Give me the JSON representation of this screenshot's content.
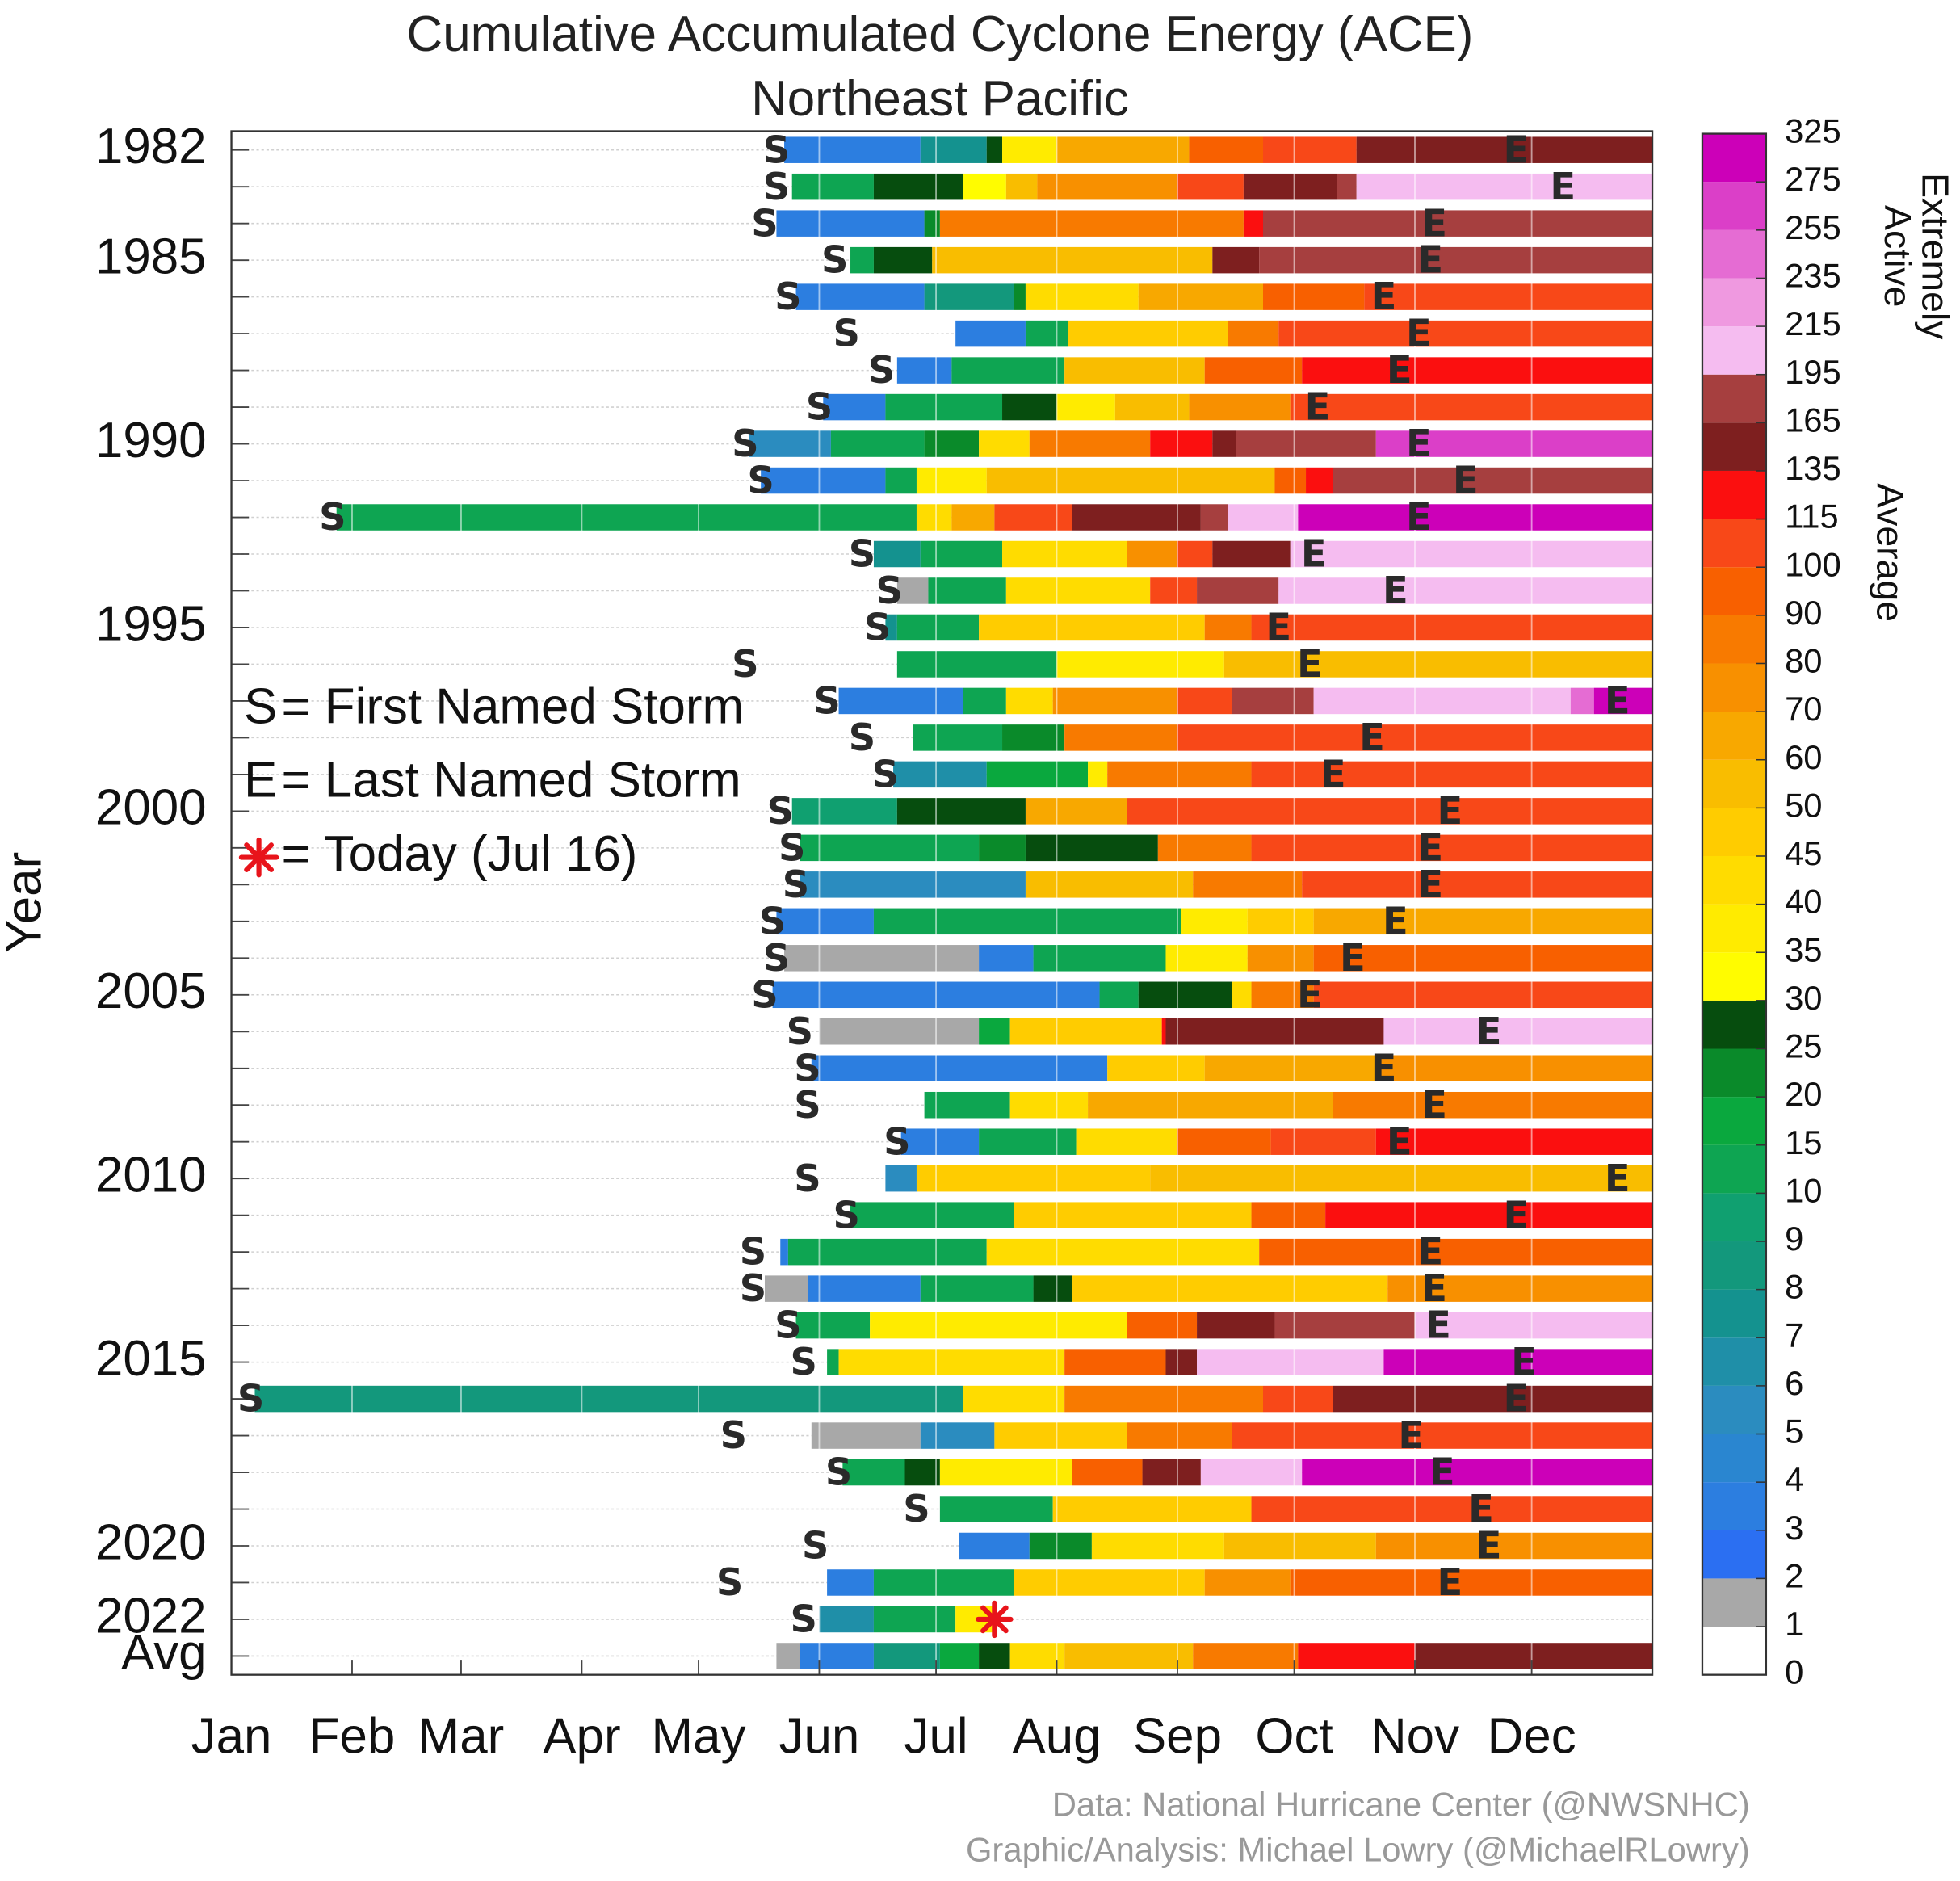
{
  "chart_data": {
    "type": "heatmap-timeline",
    "title": "Cumulative Accumulated Cyclone Energy (ACE)",
    "subtitle": "Northeast Pacific",
    "y_label": "Year",
    "xlim": [
      1,
      366
    ],
    "xticks": [
      {
        "value": 1,
        "label": "Jan"
      },
      {
        "value": 32,
        "label": "Feb"
      },
      {
        "value": 60,
        "label": "Mar"
      },
      {
        "value": 91,
        "label": "Apr"
      },
      {
        "value": 121,
        "label": "May"
      },
      {
        "value": 152,
        "label": "Jun"
      },
      {
        "value": 182,
        "label": "Jul"
      },
      {
        "value": 213,
        "label": "Aug"
      },
      {
        "value": 244,
        "label": "Sep"
      },
      {
        "value": 274,
        "label": "Oct"
      },
      {
        "value": 305,
        "label": "Nov"
      },
      {
        "value": 335,
        "label": "Dec"
      }
    ],
    "categories": [
      "1982",
      null,
      null,
      "1985",
      null,
      null,
      null,
      null,
      "1990",
      null,
      null,
      null,
      null,
      "1995",
      null,
      null,
      null,
      null,
      "2000",
      null,
      null,
      null,
      null,
      "2005",
      null,
      null,
      null,
      null,
      "2010",
      null,
      null,
      null,
      null,
      "2015",
      null,
      null,
      null,
      null,
      "2020",
      null,
      "2022",
      "Avg"
    ],
    "rows": [
      {
        "s": 141,
        "e": 331,
        "steps": [
          [
            143,
            3.5
          ],
          [
            178,
            7.5
          ],
          [
            195,
            25
          ],
          [
            199,
            35
          ],
          [
            213,
            60
          ],
          [
            247,
            90
          ],
          [
            266,
            110
          ],
          [
            290,
            150
          ]
        ]
      },
      {
        "s": 141,
        "e": 343,
        "steps": [
          [
            145,
            12
          ],
          [
            166,
            27
          ],
          [
            189,
            33
          ],
          [
            200,
            55
          ],
          [
            208,
            70
          ],
          [
            244,
            100
          ],
          [
            261,
            140
          ],
          [
            285,
            170
          ],
          [
            290,
            200
          ]
        ]
      },
      {
        "s": 138,
        "e": 310,
        "steps": [
          [
            141,
            3
          ],
          [
            179,
            22
          ],
          [
            183,
            80
          ],
          [
            261,
            115
          ],
          [
            266,
            170
          ]
        ]
      },
      {
        "s": 156,
        "e": 309,
        "steps": [
          [
            160,
            12
          ],
          [
            166,
            27
          ],
          [
            181,
            50
          ],
          [
            253,
            150
          ],
          [
            265,
            170
          ]
        ]
      },
      {
        "s": 144,
        "e": 297,
        "steps": [
          [
            146,
            3
          ],
          [
            179,
            8
          ],
          [
            202,
            22
          ],
          [
            205,
            40
          ],
          [
            234,
            60
          ],
          [
            266,
            90
          ],
          [
            292,
            110
          ]
        ]
      },
      {
        "s": 159,
        "e": 306,
        "steps": [
          [
            187,
            3.5
          ],
          [
            205,
            12
          ],
          [
            216,
            45
          ],
          [
            257,
            80
          ],
          [
            270,
            110
          ]
        ]
      },
      {
        "s": 168,
        "e": 301,
        "steps": [
          [
            172,
            3
          ],
          [
            186,
            12
          ],
          [
            215,
            50
          ],
          [
            251,
            90
          ],
          [
            276,
            115
          ]
        ]
      },
      {
        "s": 152,
        "e": 280,
        "steps": [
          [
            153,
            3
          ],
          [
            169,
            12
          ],
          [
            199,
            25
          ],
          [
            213,
            35
          ],
          [
            228,
            50
          ],
          [
            247,
            70
          ],
          [
            273,
            100
          ]
        ]
      },
      {
        "s": 133,
        "e": 306,
        "steps": [
          [
            134,
            5
          ],
          [
            155,
            12
          ],
          [
            179,
            22
          ],
          [
            193,
            40
          ],
          [
            206,
            80
          ],
          [
            237,
            115
          ],
          [
            253,
            150
          ],
          [
            259,
            170
          ],
          [
            295,
            260
          ]
        ]
      },
      {
        "s": 137,
        "e": 318,
        "steps": [
          [
            137,
            3
          ],
          [
            169,
            12
          ],
          [
            177,
            35
          ],
          [
            195,
            50
          ],
          [
            269,
            90
          ],
          [
            277,
            120
          ],
          [
            284,
            170
          ]
        ]
      },
      {
        "s": 27,
        "e": 306,
        "steps": [
          [
            28,
            12
          ],
          [
            177,
            40
          ],
          [
            186,
            60
          ],
          [
            197,
            100
          ],
          [
            217,
            150
          ],
          [
            250,
            170
          ],
          [
            257,
            200
          ],
          [
            275,
            290
          ]
        ]
      },
      {
        "s": 163,
        "e": 279,
        "steps": [
          [
            166,
            7.5
          ],
          [
            178,
            12
          ],
          [
            199,
            40
          ],
          [
            231,
            70
          ],
          [
            244,
            110
          ],
          [
            253,
            150
          ],
          [
            273,
            200
          ]
        ]
      },
      {
        "s": 170,
        "e": 300,
        "steps": [
          [
            172,
            1.5
          ],
          [
            180,
            12
          ],
          [
            200,
            40
          ],
          [
            237,
            110
          ],
          [
            249,
            170
          ],
          [
            270,
            200
          ]
        ]
      },
      {
        "s": 167,
        "e": 270,
        "steps": [
          [
            169,
            7.5
          ],
          [
            172,
            12
          ],
          [
            193,
            45
          ],
          [
            251,
            80
          ],
          [
            263,
            110
          ]
        ]
      },
      {
        "s": 133,
        "e": 278,
        "steps": [
          [
            172,
            12
          ],
          [
            213,
            35
          ],
          [
            256,
            50
          ]
        ]
      },
      {
        "s": 154,
        "e": 357,
        "steps": [
          [
            157,
            3
          ],
          [
            189,
            12
          ],
          [
            200,
            40
          ],
          [
            212,
            70
          ],
          [
            244,
            110
          ],
          [
            258,
            170
          ],
          [
            279,
            200
          ],
          [
            345,
            240
          ],
          [
            351,
            290
          ]
        ]
      },
      {
        "s": 163,
        "e": 294,
        "steps": [
          [
            176,
            12
          ],
          [
            199,
            22
          ],
          [
            215,
            80
          ],
          [
            244,
            110
          ]
        ]
      },
      {
        "s": 169,
        "e": 284,
        "steps": [
          [
            171,
            6
          ],
          [
            195,
            15
          ],
          [
            221,
            35
          ],
          [
            226,
            80
          ],
          [
            263,
            110
          ]
        ]
      },
      {
        "s": 142,
        "e": 314,
        "steps": [
          [
            145,
            9
          ],
          [
            172,
            27
          ],
          [
            205,
            60
          ],
          [
            231,
            100
          ]
        ]
      },
      {
        "s": 145,
        "e": 309,
        "steps": [
          [
            147,
            12
          ],
          [
            193,
            22
          ],
          [
            205,
            27
          ],
          [
            239,
            80
          ],
          [
            263,
            100
          ]
        ]
      },
      {
        "s": 146,
        "e": 309,
        "steps": [
          [
            147,
            5
          ],
          [
            205,
            50
          ],
          [
            248,
            80
          ],
          [
            276,
            100
          ]
        ]
      },
      {
        "s": 140,
        "e": 300,
        "steps": [
          [
            141,
            3
          ],
          [
            166,
            12
          ],
          [
            245,
            35
          ],
          [
            262,
            45
          ],
          [
            279,
            60
          ]
        ]
      },
      {
        "s": 141,
        "e": 289,
        "steps": [
          [
            143,
            1.5
          ],
          [
            193,
            3
          ],
          [
            207,
            12
          ],
          [
            241,
            35
          ],
          [
            262,
            70
          ],
          [
            279,
            90
          ]
        ]
      },
      {
        "s": 138,
        "e": 278,
        "steps": [
          [
            140,
            3
          ],
          [
            224,
            12
          ],
          [
            234,
            27
          ],
          [
            258,
            40
          ],
          [
            263,
            80
          ],
          [
            279,
            100
          ]
        ]
      },
      {
        "s": 147,
        "e": 324,
        "steps": [
          [
            152,
            1.5
          ],
          [
            193,
            15
          ],
          [
            201,
            45
          ],
          [
            240,
            115
          ],
          [
            241,
            150
          ],
          [
            297,
            200
          ]
        ]
      },
      {
        "s": 149,
        "e": 297,
        "steps": [
          [
            150,
            3
          ],
          [
            226,
            45
          ],
          [
            251,
            60
          ],
          [
            295,
            70
          ]
        ]
      },
      {
        "s": 149,
        "e": 310,
        "steps": [
          [
            179,
            12
          ],
          [
            201,
            40
          ],
          [
            221,
            60
          ],
          [
            284,
            80
          ]
        ]
      },
      {
        "s": 172,
        "e": 301,
        "steps": [
          [
            173,
            3
          ],
          [
            193,
            12
          ],
          [
            218,
            40
          ],
          [
            244,
            90
          ],
          [
            268,
            100
          ],
          [
            295,
            115
          ]
        ]
      },
      {
        "s": 149,
        "e": 357,
        "steps": [
          [
            169,
            5
          ],
          [
            177,
            45
          ],
          [
            237,
            50
          ]
        ]
      },
      {
        "s": 159,
        "e": 331,
        "steps": [
          [
            160,
            12
          ],
          [
            202,
            45
          ],
          [
            263,
            90
          ],
          [
            282,
            115
          ]
        ]
      },
      {
        "s": 135,
        "e": 309,
        "steps": [
          [
            142,
            3
          ],
          [
            144,
            12
          ],
          [
            195,
            40
          ],
          [
            265,
            90
          ]
        ]
      },
      {
        "s": 135,
        "e": 310,
        "steps": [
          [
            138,
            1.5
          ],
          [
            149,
            3
          ],
          [
            178,
            12
          ],
          [
            207,
            27
          ],
          [
            217,
            45
          ],
          [
            298,
            70
          ]
        ]
      },
      {
        "s": 144,
        "e": 311,
        "steps": [
          [
            146,
            12
          ],
          [
            165,
            35
          ],
          [
            231,
            90
          ],
          [
            249,
            150
          ],
          [
            269,
            165
          ],
          [
            305,
            200
          ]
        ]
      },
      {
        "s": 148,
        "e": 333,
        "steps": [
          [
            154,
            12
          ],
          [
            157,
            40
          ],
          [
            215,
            90
          ],
          [
            241,
            150
          ],
          [
            249,
            200
          ],
          [
            297,
            285
          ]
        ]
      },
      {
        "s": 6,
        "e": 331,
        "steps": [
          [
            7,
            8
          ],
          [
            189,
            40
          ],
          [
            215,
            80
          ],
          [
            266,
            110
          ],
          [
            284,
            150
          ]
        ]
      },
      {
        "s": 130,
        "e": 304,
        "steps": [
          [
            150,
            1.5
          ],
          [
            178,
            5
          ],
          [
            197,
            45
          ],
          [
            231,
            80
          ],
          [
            258,
            110
          ]
        ]
      },
      {
        "s": 157,
        "e": 312,
        "steps": [
          [
            158,
            12
          ],
          [
            174,
            27
          ],
          [
            183,
            35
          ],
          [
            217,
            90
          ],
          [
            235,
            150
          ],
          [
            250,
            200
          ],
          [
            276,
            290
          ]
        ]
      },
      {
        "s": 177,
        "e": 322,
        "steps": [
          [
            183,
            12
          ],
          [
            212,
            45
          ],
          [
            263,
            100
          ]
        ]
      },
      {
        "s": 151,
        "e": 324,
        "steps": [
          [
            188,
            3
          ],
          [
            206,
            22
          ],
          [
            222,
            40
          ],
          [
            256,
            50
          ],
          [
            295,
            70
          ]
        ]
      },
      {
        "s": 129,
        "e": 314,
        "steps": [
          [
            154,
            3
          ],
          [
            166,
            12
          ],
          [
            202,
            45
          ],
          [
            251,
            70
          ],
          [
            273,
            90
          ]
        ]
      },
      {
        "s": 148,
        "steps": [
          [
            152,
            6
          ],
          [
            166,
            12
          ],
          [
            187,
            35
          ]
        ]
      },
      {
        "steps": [
          [
            141,
            1.5
          ],
          [
            147,
            3
          ],
          [
            166,
            8
          ],
          [
            183,
            15
          ],
          [
            193,
            25
          ],
          [
            201,
            40
          ],
          [
            215,
            55
          ],
          [
            248,
            80
          ],
          [
            275,
            115
          ],
          [
            305,
            140
          ]
        ]
      }
    ],
    "today": 197,
    "colorbar": {
      "bounds": [
        0,
        1,
        2,
        3,
        4,
        5,
        6,
        7,
        8,
        9,
        10,
        15,
        20,
        25,
        30,
        35,
        40,
        45,
        50,
        60,
        70,
        80,
        90,
        100,
        115,
        135,
        165,
        195,
        215,
        235,
        255,
        275,
        325
      ],
      "colors": [
        "#ffffff",
        "#a8a8a8",
        "#2b6ff2",
        "#2c7ee0",
        "#2a86d0",
        "#2b8cbf",
        "#1f8fa8",
        "#14928f",
        "#13987c",
        "#10a070",
        "#0ea552",
        "#0aa83e",
        "#0a8a2a",
        "#064d0e",
        "#fffc00",
        "#ffeb00",
        "#ffdc00",
        "#ffcc00",
        "#f9bd00",
        "#f8a800",
        "#f89000",
        "#f87a00",
        "#f86000",
        "#f84818",
        "#fb0f0f",
        "#7e1f1f",
        "#a63f3f",
        "#f5bcf0",
        "#ef99e0",
        "#e56cd3",
        "#db3fc8",
        "#cc00b8"
      ],
      "upper_label": [
        "Extremely",
        "Active"
      ],
      "lower_label": "Average"
    },
    "legend": [
      {
        "symbol": "S",
        "text": "= First Named Storm"
      },
      {
        "symbol": "E",
        "text": "= Last Named Storm"
      },
      {
        "text": "= Today (Jul 16)"
      }
    ],
    "credits": [
      "Data: National Hurricane Center (@NWSNHC)",
      "Graphic/Analysis: Michael Lowry (@MichaelRLowry)"
    ]
  }
}
